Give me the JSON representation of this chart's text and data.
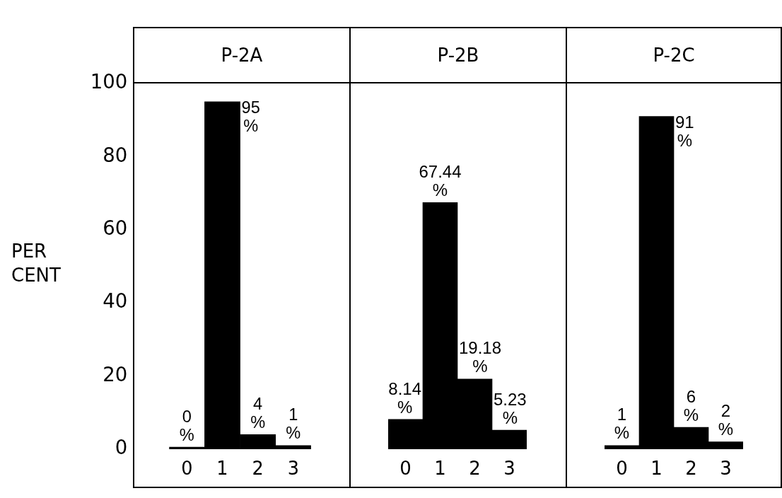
{
  "chart_data": [
    {
      "type": "bar",
      "title": "P-2A",
      "ylabel": "PER CENT",
      "categories": [
        "0",
        "1",
        "2",
        "3"
      ],
      "values": [
        0,
        95,
        4,
        1
      ],
      "value_labels": [
        "0 %",
        "95 %",
        "4 %",
        "1 %"
      ],
      "color": "#000000",
      "ylim": [
        0,
        100
      ],
      "yticks": [
        0,
        20,
        40,
        60,
        80,
        100
      ]
    },
    {
      "type": "bar",
      "title": "P-2B",
      "categories": [
        "0",
        "1",
        "2",
        "3"
      ],
      "values": [
        8.14,
        67.44,
        19.18,
        5.23
      ],
      "value_labels": [
        "8.14 %",
        "67.44 %",
        "19.18 %",
        "5.23 %"
      ],
      "color": "#000000",
      "ylim": [
        0,
        100
      ],
      "yticks": [
        0,
        20,
        40,
        60,
        80,
        100
      ],
      "tick_labels": "x"
    },
    {
      "type": "bar",
      "title": "P-2C",
      "categories": [
        "0",
        "1",
        "2",
        "3"
      ],
      "values": [
        1,
        91,
        6,
        2
      ],
      "value_labels": [
        "1 %",
        "91 %",
        "6 %",
        "2 %"
      ],
      "color": "#000000",
      "ylim": [
        0,
        100
      ],
      "yticks": [
        0,
        20,
        40,
        60,
        80,
        100
      ],
      "tick_labels": "x"
    }
  ]
}
